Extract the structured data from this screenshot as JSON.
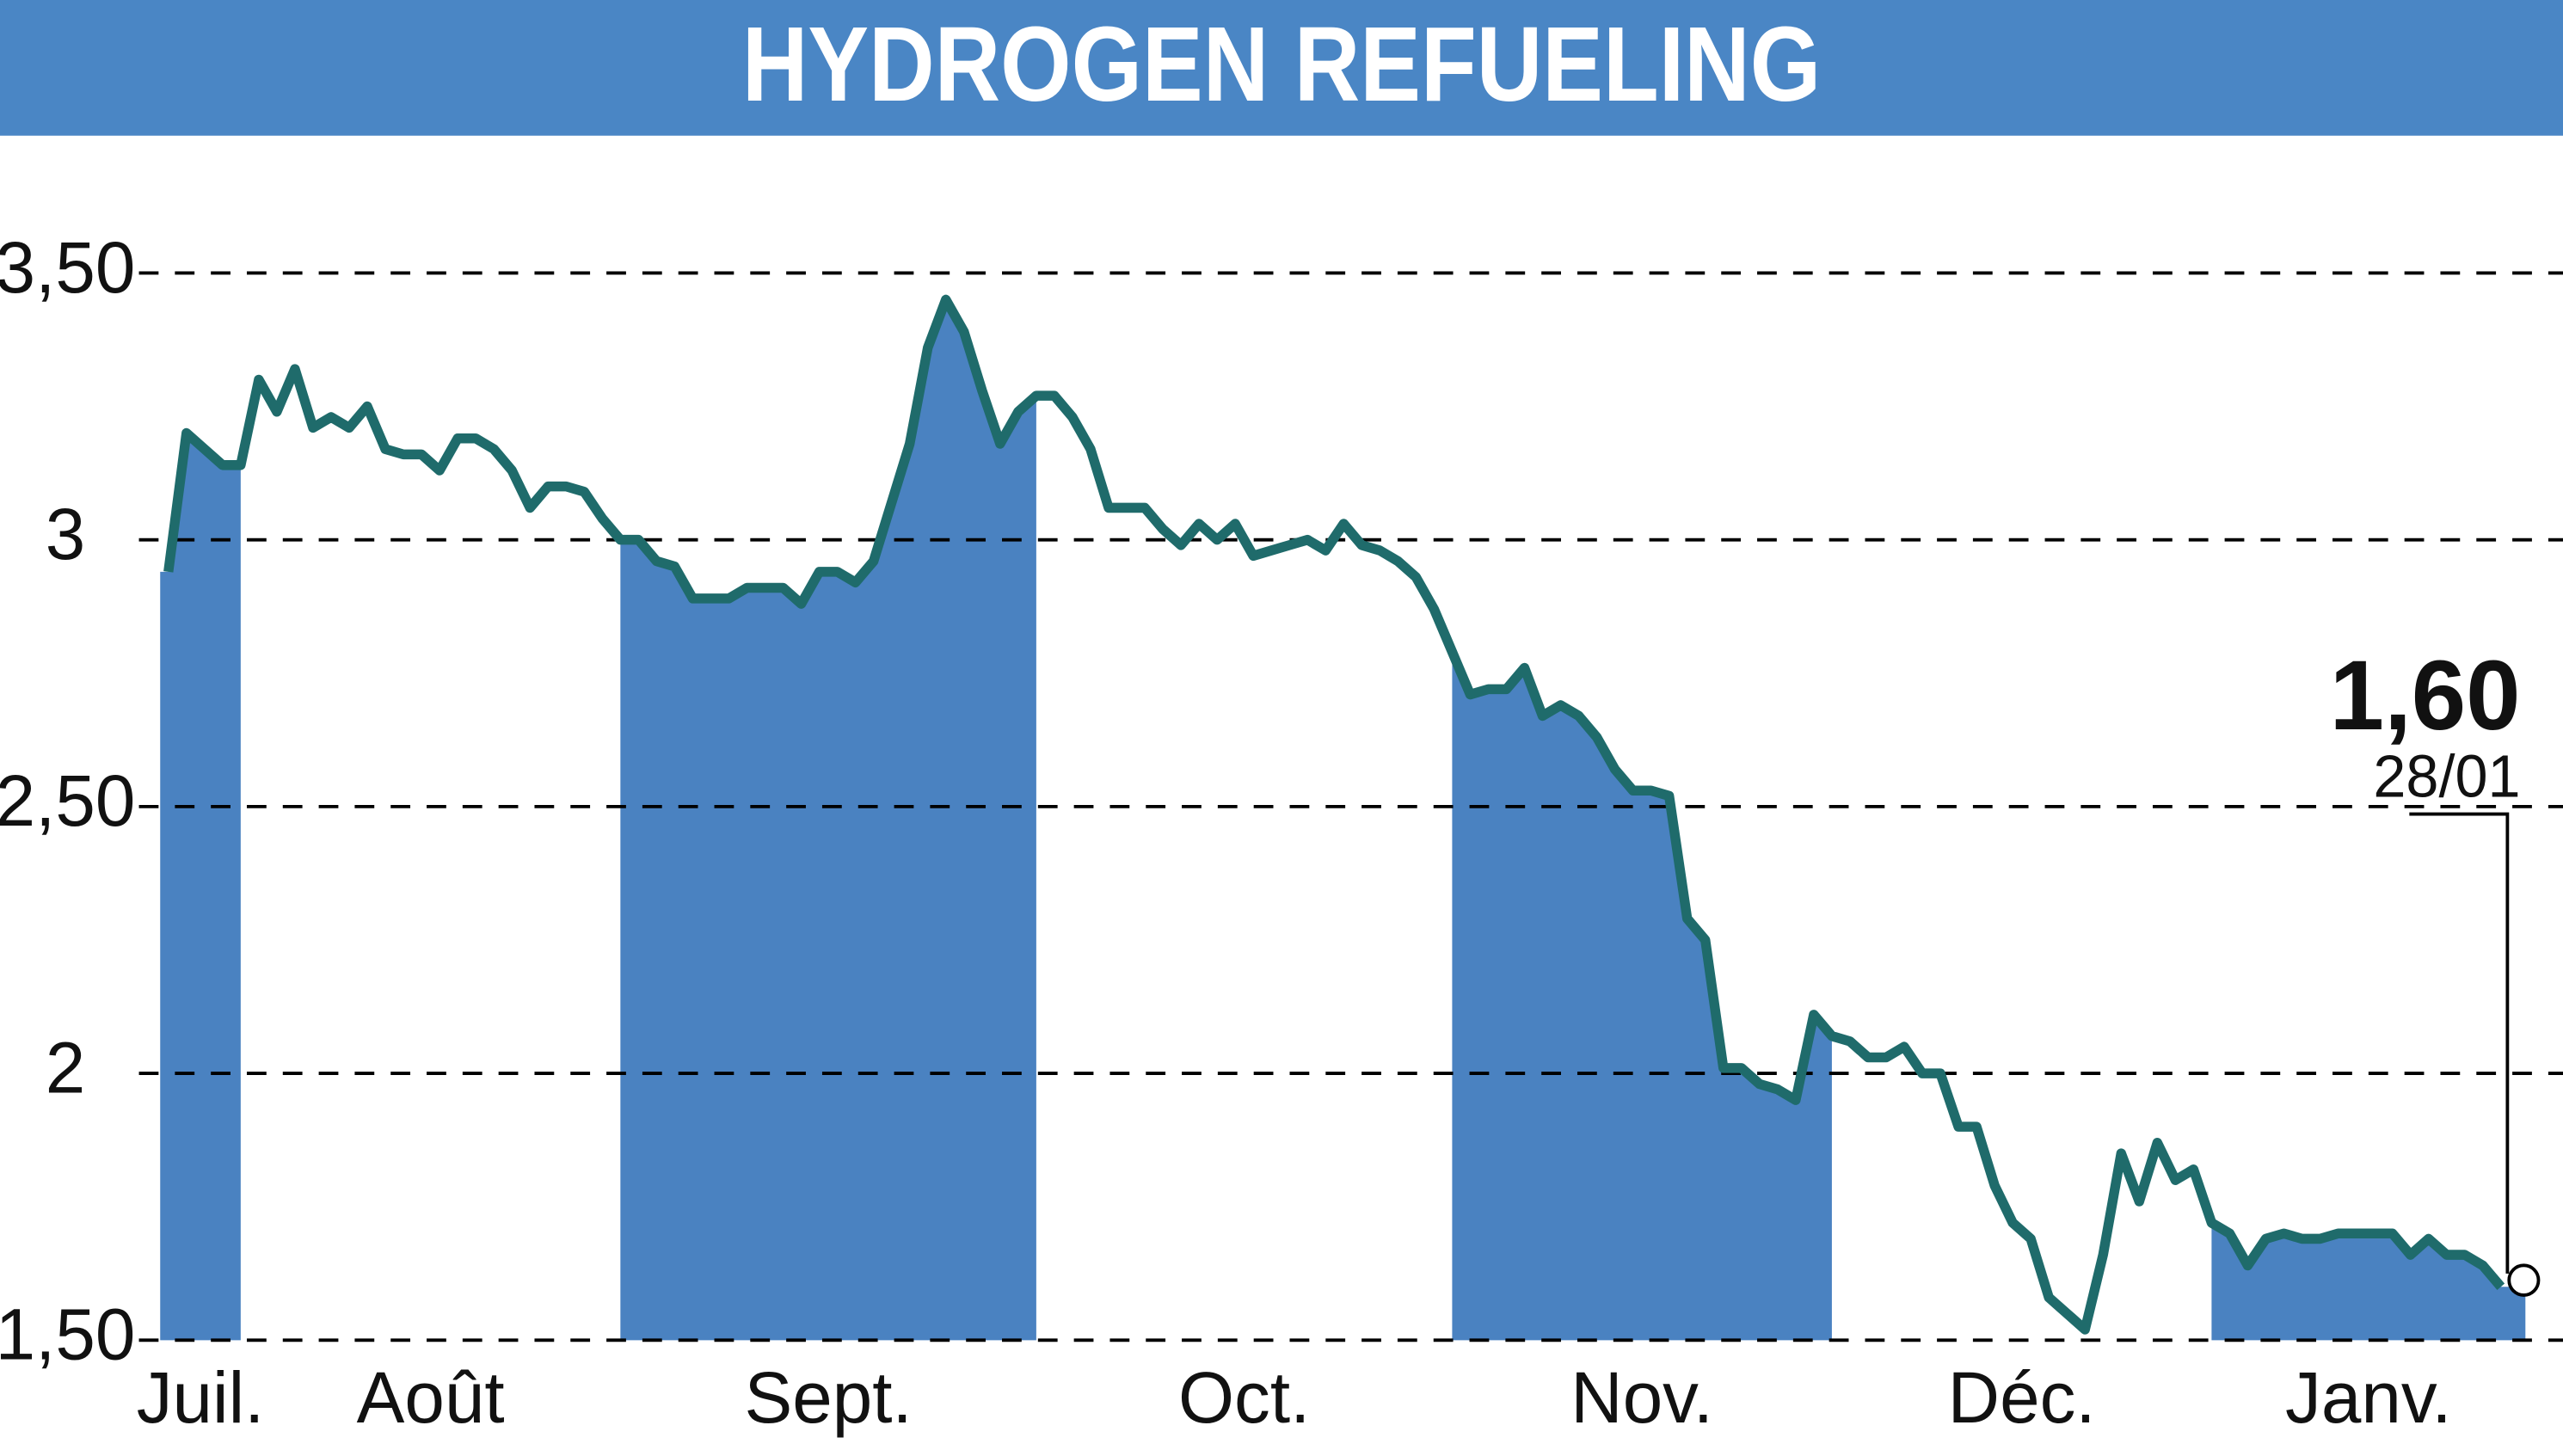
{
  "chart_data": {
    "type": "line",
    "title": "HYDROGEN REFUELING",
    "categories": [
      "Juil.",
      "Août",
      "Sept.",
      "Oct.",
      "Nov.",
      "Déc.",
      "Janv."
    ],
    "values": [
      [
        2.94,
        3.2,
        3.17,
        3.14
      ],
      [
        3.14,
        3.3,
        3.24,
        3.32,
        3.21,
        3.23,
        3.21,
        3.25,
        3.17,
        3.16,
        3.16,
        3.13,
        3.19,
        3.19,
        3.17,
        3.13,
        3.06,
        3.1,
        3.1,
        3.09,
        3.04
      ],
      [
        3.0,
        3.0,
        2.96,
        2.95,
        2.89,
        2.89,
        2.89,
        2.91,
        2.91,
        2.91,
        2.88,
        2.94,
        2.94,
        2.92,
        2.96,
        3.07,
        3.18,
        3.36,
        3.45,
        3.39,
        3.28,
        3.18,
        3.24
      ],
      [
        3.27,
        3.27,
        3.23,
        3.17,
        3.06,
        3.06,
        3.06,
        3.02,
        2.99,
        3.03,
        3.0,
        3.03,
        2.97,
        2.98,
        2.99,
        3.0,
        2.98,
        3.03,
        2.99,
        2.98,
        2.96,
        2.93,
        2.87
      ],
      [
        2.79,
        2.71,
        2.72,
        2.72,
        2.76,
        2.67,
        2.69,
        2.67,
        2.63,
        2.57,
        2.53,
        2.53,
        2.52,
        2.29,
        2.25,
        2.01,
        2.01,
        1.98,
        1.97,
        1.95,
        2.11
      ],
      [
        2.07,
        2.06,
        2.03,
        2.03,
        2.05,
        2.0,
        2.0,
        1.9,
        1.9,
        1.79,
        1.72,
        1.69,
        1.58,
        1.55,
        1.52,
        1.66,
        1.85,
        1.76,
        1.87,
        1.8,
        1.82
      ],
      [
        1.72,
        1.7,
        1.64,
        1.69,
        1.7,
        1.69,
        1.69,
        1.7,
        1.7,
        1.7,
        1.7,
        1.66,
        1.69,
        1.66,
        1.66,
        1.64,
        1.6
      ]
    ],
    "line_color": "#1f6b6b",
    "fill_color": "#4a82c1",
    "ylim": [
      1.5,
      3.5
    ],
    "yticks": [
      {
        "value": 1.5,
        "label": "1,50"
      },
      2,
      {
        "value": 2.5,
        "label": "2,50"
      },
      3,
      {
        "value": 3.5,
        "label": "3,50"
      }
    ],
    "grid": true,
    "annotation": {
      "value_label": "1,60",
      "date": "28/01"
    }
  }
}
